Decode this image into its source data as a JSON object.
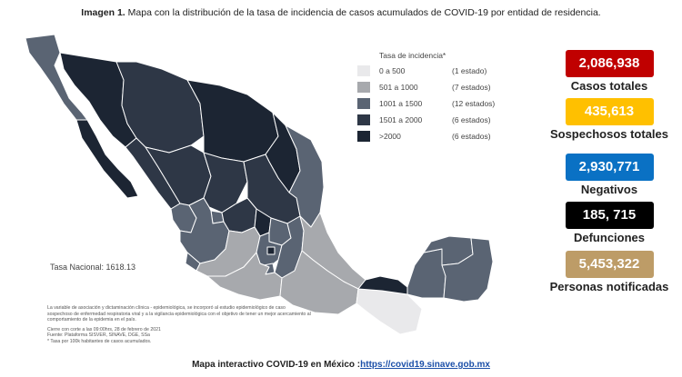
{
  "title": {
    "bold": "Imagen 1.",
    "text": "Mapa con la distribución de la tasa de incidencia de casos acumulados de COVID-19 por entidad de residencia."
  },
  "legend": {
    "title": "Tasa de incidencia*",
    "items": [
      {
        "range": "0 a   500",
        "count": "(1 estado)",
        "color": "#e9e9eb"
      },
      {
        "range": "501 a  1000",
        "count": "(7 estados)",
        "color": "#a7a9ad"
      },
      {
        "range": "1001 a  1500",
        "count": "(12 estados)",
        "color": "#5a6473"
      },
      {
        "range": "1501 a  2000",
        "count": "(6 estados)",
        "color": "#2e3746"
      },
      {
        "range": ">2000",
        "count": "(6 estados)",
        "color": "#1c2533"
      }
    ]
  },
  "national_rate": "Tasa Nacional: 1618.13",
  "stats": [
    {
      "value": "2,086,938",
      "label": "Casos totales",
      "color": "#c00000"
    },
    {
      "value": "435,613",
      "label": "Sospechosos totales",
      "color": "#ffc000"
    },
    {
      "value": "2,930,771",
      "label": "Negativos",
      "color": "#0a71c4"
    },
    {
      "value": "185, 715",
      "label": "Defunciones",
      "color": "#000000"
    },
    {
      "value": "5,453,322",
      "label": "Personas notificadas",
      "color": "#bd9c67"
    }
  ],
  "notes": {
    "p1": "La variable de asociación y dictaminación clínica - epidemiológica, se incorporó al estudio epidemiológico de caso sospechoso de enfermedad respiratoria viral y a la vigilancia epidemiológica con el objetivo de tener un mejor acercamiento al comportamiento de la epidemia en el país.",
    "cut": "Cierre con corte a las 09:00hrs, 28 de febrero de 2021",
    "source": "Fuente: Plataforma SISVER, SINAVE, DGE, SSa",
    "rate": "* Tasa por 100k habitantes de casos acumulados."
  },
  "footer": {
    "text": "Mapa interactivo COVID-19 en México :",
    "link": "https://covid19.sinave.gob.mx"
  }
}
